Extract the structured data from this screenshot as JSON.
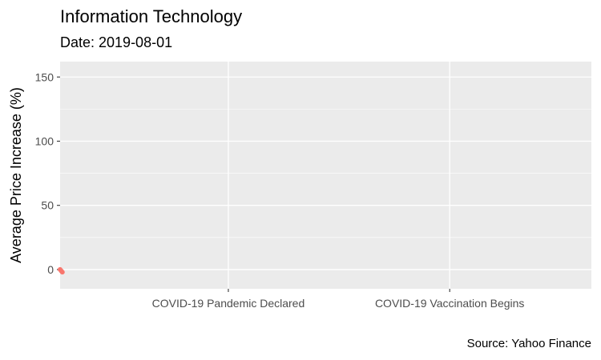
{
  "chart_data": {
    "type": "line",
    "title": "Information Technology",
    "subtitle": "Date: 2019-08-01",
    "caption": "Source: Yahoo Finance",
    "xlabel": "",
    "ylabel": "Average Price Increase (%)",
    "ylim": [
      -15,
      162
    ],
    "yticks": [
      0,
      50,
      100,
      150
    ],
    "xlim": [
      0,
      24
    ],
    "xticks": [
      {
        "pos": 7.6,
        "label": "COVID-19 Pandemic Declared"
      },
      {
        "pos": 17.6,
        "label": "COVID-19 Vaccination Begins"
      }
    ],
    "grid": true,
    "legend": "none",
    "series": [
      {
        "color": "#F8766D",
        "points": [
          [
            0,
            0
          ],
          [
            0.05,
            -1
          ],
          [
            0.1,
            -2
          ]
        ]
      }
    ]
  }
}
